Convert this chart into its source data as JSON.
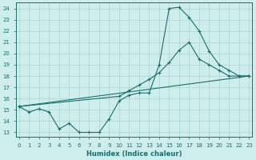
{
  "xlabel": "Humidex (Indice chaleur)",
  "x_ticks": [
    0,
    1,
    2,
    3,
    4,
    5,
    6,
    7,
    8,
    9,
    10,
    11,
    12,
    13,
    14,
    15,
    16,
    17,
    18,
    19,
    20,
    21,
    22,
    23
  ],
  "y_ticks": [
    13,
    14,
    15,
    16,
    17,
    18,
    19,
    20,
    21,
    22,
    23,
    24
  ],
  "xlim": [
    -0.3,
    23.3
  ],
  "ylim": [
    12.6,
    24.5
  ],
  "bg_color": "#cdeeed",
  "grid_color": "#b0d8d0",
  "line_color": "#1a6e6e",
  "series1_x": [
    0,
    1,
    2,
    3,
    4,
    5,
    6,
    7,
    8,
    9,
    10,
    11,
    12,
    13,
    14,
    15,
    16,
    17,
    18,
    19,
    20,
    21,
    22,
    23
  ],
  "series1_y": [
    15.3,
    14.8,
    15.1,
    14.8,
    13.3,
    13.8,
    13.0,
    13.0,
    13.0,
    14.2,
    15.8,
    16.3,
    16.5,
    16.5,
    19.0,
    24.0,
    24.1,
    23.2,
    22.0,
    20.2,
    19.0,
    18.5,
    18.0,
    18.0
  ],
  "series2_x": [
    0,
    10,
    11,
    12,
    13,
    14,
    15,
    16,
    17,
    18,
    19,
    20,
    21,
    22,
    23
  ],
  "series2_y": [
    15.3,
    16.2,
    16.7,
    17.2,
    17.7,
    18.3,
    19.2,
    20.3,
    21.0,
    19.5,
    19.0,
    18.5,
    18.0,
    18.0,
    18.0
  ],
  "series3_x": [
    0,
    23
  ],
  "series3_y": [
    15.3,
    18.0
  ]
}
